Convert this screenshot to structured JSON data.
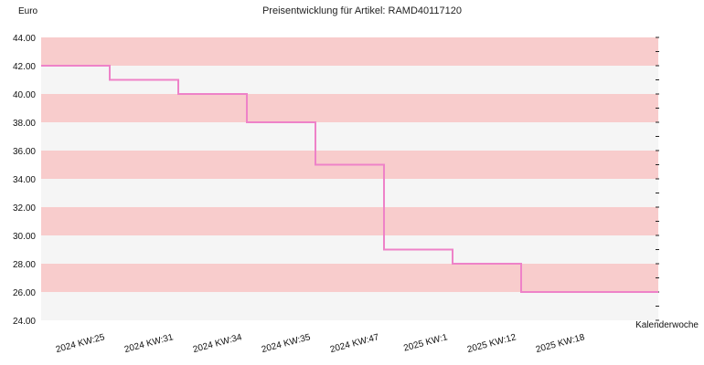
{
  "chart_data": {
    "type": "line",
    "step": true,
    "title": "Preisentwicklung für Artikel: RAMD40117120",
    "ylabel": "Euro",
    "xlabel": "Kalenderwoche",
    "ylim": [
      24,
      44
    ],
    "yticks": [
      "24.00",
      "26.00",
      "28.00",
      "30.00",
      "32.00",
      "34.00",
      "36.00",
      "38.00",
      "40.00",
      "42.00",
      "44.00"
    ],
    "categories": [
      "2024 KW:25",
      "2024 KW:31",
      "2024 KW:34",
      "2024 KW:35",
      "2024 KW:47",
      "2025 KW:1",
      "2025 KW:12",
      "2025 KW:18"
    ],
    "values": [
      42,
      41,
      40,
      38,
      35,
      29,
      28,
      26
    ],
    "grid": true,
    "colors": {
      "line": "#ee82c8",
      "band_dark": "#f8cccc",
      "band_light": "#f5f5f5"
    }
  }
}
